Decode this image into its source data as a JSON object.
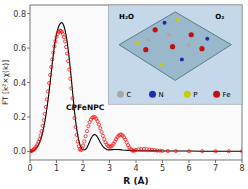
{
  "chart_data": {
    "type": "line",
    "xlabel": "R (Å)",
    "ylabel": "FT [k²×χ(k)]",
    "xlim": [
      0,
      8
    ],
    "ylim": [
      -0.05,
      0.85
    ],
    "xticks": [
      0,
      1,
      2,
      3,
      4,
      5,
      6,
      7,
      8
    ],
    "yticks": [
      {
        "value": 0.0,
        "label": "0.0"
      },
      {
        "value": 0.2,
        "label": "0.2"
      },
      {
        "value": 0.4,
        "label": "0.4"
      },
      {
        "value": 0.6,
        "label": "0.6"
      },
      {
        "value": 0.8,
        "label": "0.8"
      }
    ],
    "grid": false,
    "annotations": [
      "CPFeNPC"
    ],
    "inset": {
      "texts": [
        "H₂O",
        "O₂"
      ],
      "legend": [
        {
          "label": "C",
          "color": "#a8a8a8"
        },
        {
          "label": "N",
          "color": "#1a2eb0"
        },
        {
          "label": "P",
          "color": "#c8cc00"
        },
        {
          "label": "Fe",
          "color": "#c01010"
        }
      ]
    },
    "series": [
      {
        "type": "line",
        "color": "black",
        "line_style": "solid",
        "x": [
          0.0,
          0.04,
          0.08,
          0.12,
          0.16,
          0.2,
          0.24,
          0.28,
          0.32,
          0.36,
          0.4,
          0.44,
          0.48,
          0.52,
          0.56,
          0.6,
          0.64,
          0.68,
          0.72,
          0.76,
          0.8,
          0.84,
          0.88,
          0.92,
          0.96,
          1.0,
          1.04,
          1.08,
          1.12,
          1.16,
          1.2,
          1.24,
          1.28,
          1.32,
          1.36,
          1.4,
          1.44,
          1.48,
          1.52,
          1.56,
          1.6,
          1.64,
          1.68,
          1.72,
          1.76,
          1.8,
          1.84,
          1.88,
          1.92,
          1.96,
          2.0,
          2.05,
          2.1,
          2.15,
          2.2,
          2.25,
          2.3,
          2.35,
          2.4,
          2.45,
          2.5,
          2.55,
          2.6,
          2.65,
          2.7,
          2.75,
          2.8,
          2.85,
          2.9,
          2.95,
          3.0,
          3.1,
          3.2,
          3.3,
          3.4,
          3.5,
          3.6,
          3.7,
          3.8,
          3.9,
          4.0,
          4.2,
          4.4,
          4.6,
          4.8,
          5.0,
          5.5,
          6.0,
          6.5,
          7.0,
          7.5,
          8.0
        ],
        "values": [
          0.0,
          0.001,
          0.003,
          0.005,
          0.009,
          0.014,
          0.02,
          0.028,
          0.038,
          0.052,
          0.068,
          0.088,
          0.112,
          0.14,
          0.172,
          0.21,
          0.252,
          0.298,
          0.348,
          0.4,
          0.455,
          0.51,
          0.562,
          0.61,
          0.648,
          0.68,
          0.706,
          0.725,
          0.738,
          0.746,
          0.748,
          0.742,
          0.728,
          0.706,
          0.676,
          0.638,
          0.592,
          0.54,
          0.482,
          0.42,
          0.356,
          0.292,
          0.232,
          0.178,
          0.132,
          0.094,
          0.064,
          0.042,
          0.026,
          0.015,
          0.009,
          0.008,
          0.012,
          0.022,
          0.038,
          0.056,
          0.074,
          0.088,
          0.096,
          0.098,
          0.093,
          0.082,
          0.068,
          0.053,
          0.04,
          0.029,
          0.021,
          0.015,
          0.011,
          0.009,
          0.009,
          0.01,
          0.011,
          0.011,
          0.01,
          0.008,
          0.007,
          0.006,
          0.005,
          0.004,
          0.004,
          0.003,
          0.003,
          0.003,
          0.003,
          0.002,
          0.002,
          0.002,
          0.001,
          0.001,
          0.001,
          0.001
        ]
      },
      {
        "type": "scatter",
        "color": "red",
        "marker": "circle",
        "x": [
          0.0,
          0.04,
          0.08,
          0.12,
          0.16,
          0.2,
          0.24,
          0.28,
          0.32,
          0.36,
          0.4,
          0.44,
          0.48,
          0.52,
          0.56,
          0.6,
          0.64,
          0.68,
          0.72,
          0.76,
          0.8,
          0.84,
          0.88,
          0.92,
          0.96,
          1.0,
          1.04,
          1.08,
          1.12,
          1.16,
          1.2,
          1.24,
          1.28,
          1.32,
          1.36,
          1.4,
          1.44,
          1.48,
          1.52,
          1.56,
          1.6,
          1.64,
          1.68,
          1.72,
          1.76,
          1.8,
          1.84,
          1.88,
          1.92,
          1.96,
          2.0,
          2.05,
          2.1,
          2.15,
          2.2,
          2.25,
          2.3,
          2.35,
          2.4,
          2.45,
          2.5,
          2.55,
          2.6,
          2.65,
          2.7,
          2.75,
          2.8,
          2.85,
          2.9,
          2.95,
          3.0,
          3.05,
          3.1,
          3.15,
          3.2,
          3.25,
          3.3,
          3.35,
          3.4,
          3.45,
          3.5,
          3.55,
          3.6,
          3.65,
          3.7,
          3.75,
          3.8,
          3.85,
          3.9,
          3.95,
          4.0,
          4.1,
          4.2,
          4.3,
          4.4,
          4.5,
          4.6,
          4.7,
          4.8,
          4.9,
          5.0,
          5.2,
          5.5,
          6.0,
          6.5,
          7.0,
          7.5,
          8.0
        ],
        "values": [
          0.0,
          0.002,
          0.004,
          0.008,
          0.013,
          0.02,
          0.029,
          0.04,
          0.055,
          0.072,
          0.093,
          0.118,
          0.148,
          0.181,
          0.218,
          0.258,
          0.302,
          0.348,
          0.396,
          0.444,
          0.49,
          0.534,
          0.574,
          0.61,
          0.64,
          0.664,
          0.682,
          0.694,
          0.7,
          0.7,
          0.694,
          0.682,
          0.663,
          0.638,
          0.606,
          0.568,
          0.524,
          0.475,
          0.422,
          0.366,
          0.308,
          0.25,
          0.194,
          0.142,
          0.096,
          0.058,
          0.03,
          0.013,
          0.008,
          0.016,
          0.034,
          0.058,
          0.088,
          0.118,
          0.146,
          0.169,
          0.185,
          0.196,
          0.2,
          0.198,
          0.189,
          0.175,
          0.156,
          0.135,
          0.112,
          0.09,
          0.07,
          0.053,
          0.04,
          0.031,
          0.027,
          0.028,
          0.034,
          0.044,
          0.057,
          0.071,
          0.083,
          0.092,
          0.097,
          0.097,
          0.092,
          0.082,
          0.068,
          0.052,
          0.036,
          0.022,
          0.012,
          0.006,
          0.004,
          0.005,
          0.008,
          0.012,
          0.014,
          0.014,
          0.013,
          0.011,
          0.009,
          0.007,
          0.005,
          0.004,
          0.003,
          0.002,
          0.002,
          0.001,
          0.001,
          0.001,
          0.001,
          0.001
        ]
      }
    ]
  }
}
